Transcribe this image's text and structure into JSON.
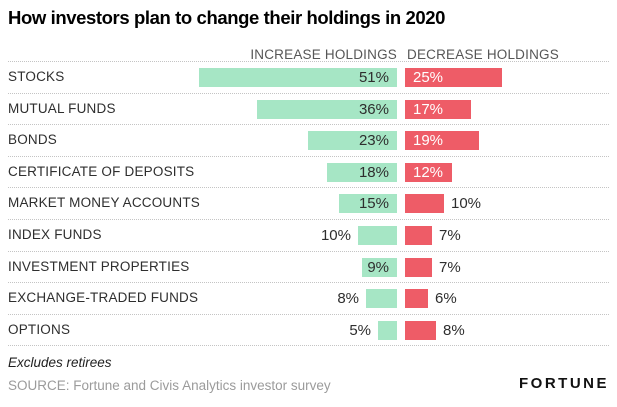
{
  "title": "How investors plan to change their holdings in 2020",
  "chart_data": {
    "type": "bar",
    "orientation": "horizontal",
    "layout": "paired-diverging-from-center",
    "title": "How investors plan to change their holdings in 2020",
    "categories": [
      "STOCKS",
      "MUTUAL FUNDS",
      "BONDS",
      "CERTIFICATE OF DEPOSITS",
      "MARKET MONEY ACCOUNTS",
      "INDEX FUNDS",
      "INVESTMENT PROPERTIES",
      "EXCHANGE-TRADED FUNDS",
      "OPTIONS"
    ],
    "series": [
      {
        "name": "INCREASE HOLDINGS",
        "color": "#a6e6c5",
        "unit": "%",
        "values": [
          51,
          36,
          23,
          18,
          15,
          10,
          9,
          8,
          5
        ]
      },
      {
        "name": "DECREASE HOLDINGS",
        "color": "#ee5c67",
        "unit": "%",
        "values": [
          25,
          17,
          19,
          12,
          10,
          7,
          7,
          6,
          8
        ]
      }
    ],
    "value_suffix": "%",
    "gridlines": "dotted row separators",
    "legend_position": "column headers above bars"
  },
  "footer": {
    "note": "Excludes retirees",
    "source": "SOURCE: Fortune and Civis Analytics investor survey",
    "brand": "FORTUNE"
  },
  "colors": {
    "increase": "#a6e6c5",
    "decrease": "#ee5c67",
    "text_dark": "#2e2e2e",
    "text_muted": "#9b9b9b",
    "separator": "#c4c4c4"
  }
}
